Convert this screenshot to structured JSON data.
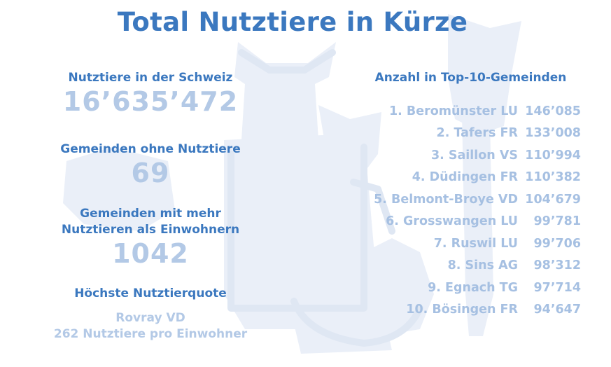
{
  "title": "Total Nutztiere in Kürze",
  "left": {
    "livestock_label": "Nutztiere in der Schweiz",
    "livestock_value": "16’635’472",
    "zero_label": "Gemeinden ohne Nutztiere",
    "zero_value": "69",
    "more_label_line1": "Gemeinden mit mehr",
    "more_label_line2": "Nutztieren als Einwohnern",
    "more_value": "1042",
    "quota_label": "Höchste Nutztierquote",
    "quota_place": "Rovray VD",
    "quota_detail": "262 Nutztiere pro Einwohner"
  },
  "right": {
    "heading": "Anzahl in Top-10-Gemeinden",
    "rows": [
      {
        "name": "1. Beromünster LU",
        "value": "146’085"
      },
      {
        "name": "2. Tafers FR",
        "value": "133’008"
      },
      {
        "name": "3. Saillon VS",
        "value": "110’994"
      },
      {
        "name": "4. Düdingen FR",
        "value": "110’382"
      },
      {
        "name": "5. Belmont-Broye VD",
        "value": "104’679"
      },
      {
        "name": "6. Grosswangen LU",
        "value": "99’781"
      },
      {
        "name": "7. Ruswil LU",
        "value": "99’706"
      },
      {
        "name": "8. Sins AG",
        "value": "98’312"
      },
      {
        "name": "9. Egnach TG",
        "value": "97’714"
      },
      {
        "name": "10. Bösingen FR",
        "value": "94’647"
      }
    ]
  },
  "colors": {
    "heading": "#3b78bf",
    "value": "#b3c9e6",
    "background_art": "#e9eef7"
  },
  "background_icons": [
    "cow-icon",
    "horse-icon",
    "goat-icon",
    "pig-icon",
    "sheep-icon",
    "chicken-icon"
  ]
}
